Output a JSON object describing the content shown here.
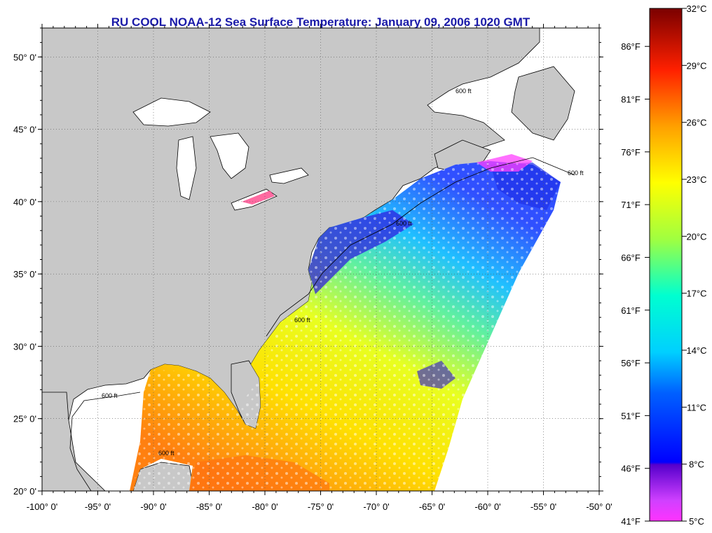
{
  "title": "RU COOL  NOAA-12  Sea Surface Temperature:  January 09, 2006 1020 GMT",
  "map": {
    "lon_range": [
      -100,
      -50
    ],
    "lat_range": [
      20,
      52
    ],
    "lon_ticks": [
      "-100° 0'",
      "-95° 0'",
      "-90° 0'",
      "-85° 0'",
      "-80° 0'",
      "-75° 0'",
      "-70° 0'",
      "-65° 0'",
      "-60° 0'",
      "-55° 0'",
      "-50° 0'"
    ],
    "lat_ticks": [
      "50° 0'",
      "45° 0'",
      "40° 0'",
      "35° 0'",
      "30° 0'",
      "25° 0'",
      "20° 0'"
    ],
    "grid": "dotted",
    "land_color": "#c8c8c8",
    "no_data_color": "#ffffff",
    "contour_label": "600 ft"
  },
  "colorbar": {
    "celsius_labels": [
      "32°C",
      "29°C",
      "26°C",
      "23°C",
      "20°C",
      "17°C",
      "14°C",
      "11°C",
      "8°C",
      "5°C"
    ],
    "fahrenheit_labels": [
      "86°F",
      "81°F",
      "76°F",
      "71°F",
      "66°F",
      "61°F",
      "56°F",
      "51°F",
      "46°F",
      "41°F"
    ],
    "range_celsius": [
      5,
      32
    ],
    "colors": [
      "#ff33ff",
      "#5500cc",
      "#0000ff",
      "#00a0ff",
      "#00ffff",
      "#40e0a0",
      "#c0ff40",
      "#ffff00",
      "#ffa000",
      "#ff4000",
      "#ff0000",
      "#800000"
    ]
  }
}
